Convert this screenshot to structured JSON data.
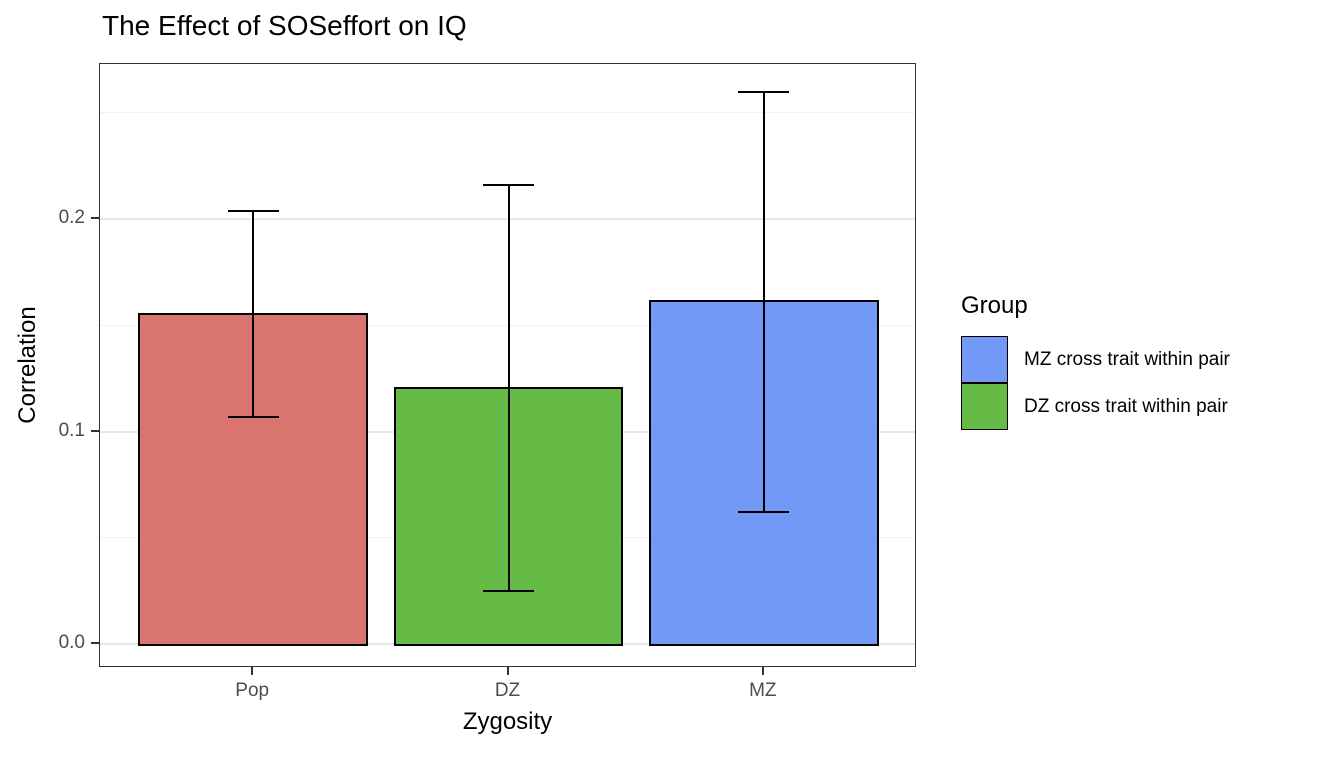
{
  "chart_data": {
    "type": "bar",
    "title": "The Effect of SOSeffort on IQ",
    "xlabel": "Zygosity",
    "ylabel": "Correlation",
    "categories": [
      "Pop",
      "DZ",
      "MZ"
    ],
    "values": [
      0.156,
      0.121,
      0.162
    ],
    "error_low": [
      0.107,
      0.025,
      0.062
    ],
    "error_high": [
      0.204,
      0.216,
      0.26
    ],
    "bar_colors": [
      "#d9756e",
      "#66bb47",
      "#7399f6"
    ],
    "y_ticks": [
      0.0,
      0.1,
      0.2
    ],
    "y_tick_labels": [
      "0.0",
      "0.1",
      "0.2"
    ],
    "y_minor_ticks": [
      0.05,
      0.15,
      0.25
    ],
    "ylim": [
      -0.011,
      0.273
    ],
    "grid": true,
    "legend_position": "right"
  },
  "legend": {
    "title": "Group",
    "items": [
      {
        "label": "MZ cross trait within pair",
        "color": "#7399f6"
      },
      {
        "label": "DZ cross trait within pair",
        "color": "#66bb47"
      }
    ]
  }
}
